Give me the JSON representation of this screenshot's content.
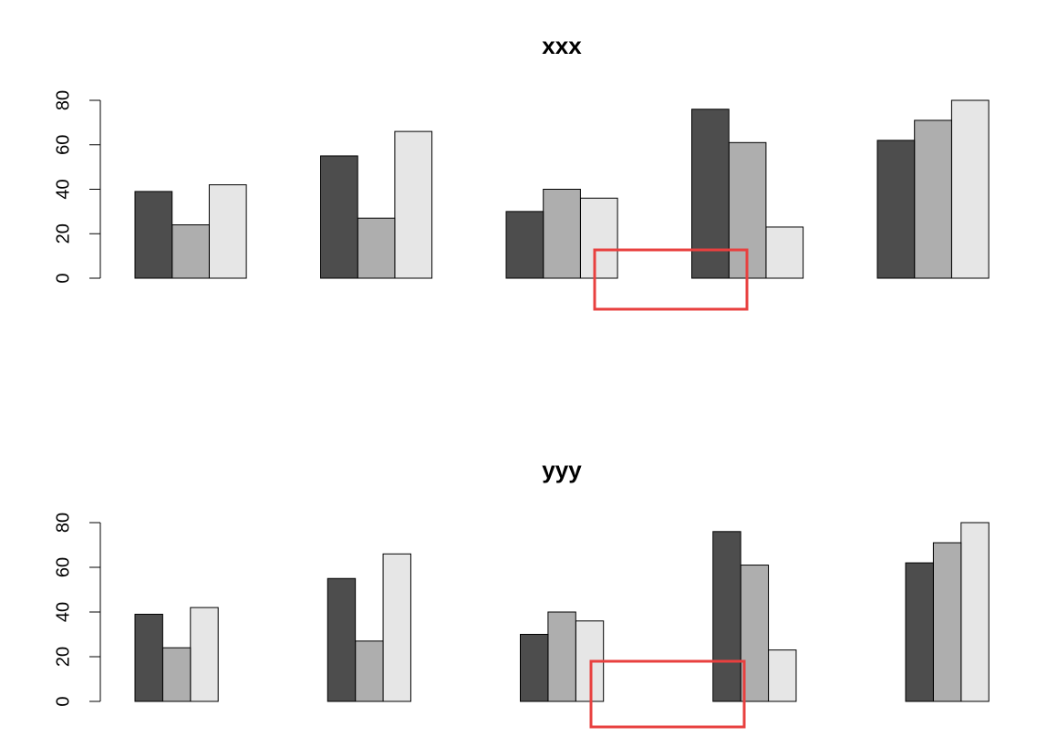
{
  "chart_data": [
    {
      "type": "bar",
      "title": "xxx",
      "categories": [
        null,
        null,
        null,
        null,
        null
      ],
      "series": [
        {
          "color": "#4d4d4d",
          "values": [
            39,
            55,
            30,
            76,
            62
          ]
        },
        {
          "color": "#aeaeae",
          "values": [
            24,
            27,
            40,
            61,
            71
          ]
        },
        {
          "color": "#e6e6e6",
          "values": [
            42,
            66,
            36,
            23,
            80
          ]
        }
      ],
      "ylim": [
        0,
        80
      ],
      "yticks": [
        0,
        20,
        40,
        60,
        80
      ]
    },
    {
      "type": "bar",
      "title": "yyy",
      "categories": [
        null,
        null,
        null,
        null,
        null
      ],
      "series": [
        {
          "color": "#4d4d4d",
          "values": [
            39,
            55,
            30,
            76,
            62
          ]
        },
        {
          "color": "#aeaeae",
          "values": [
            24,
            27,
            40,
            61,
            71
          ]
        },
        {
          "color": "#e6e6e6",
          "values": [
            42,
            66,
            36,
            23,
            80
          ]
        }
      ],
      "ylim": [
        0,
        80
      ],
      "yticks": [
        0,
        20,
        40,
        60,
        80
      ]
    }
  ]
}
